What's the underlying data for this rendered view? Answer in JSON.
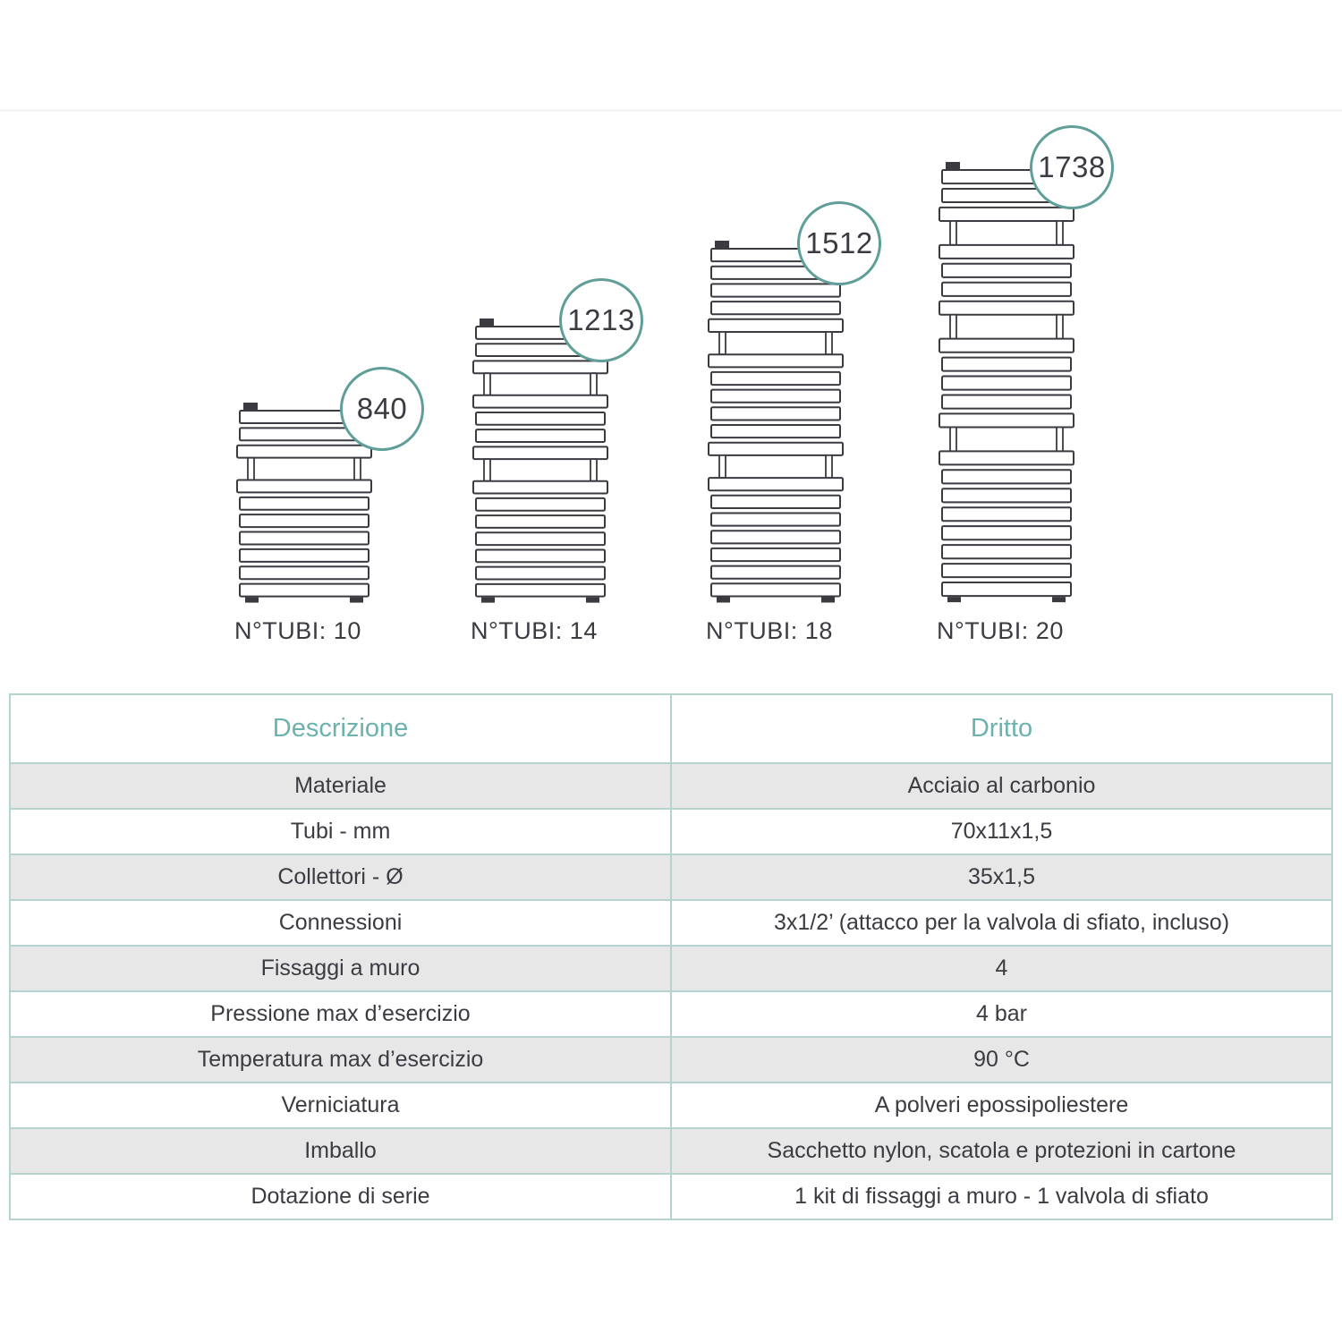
{
  "colors": {
    "teal_accent": "#6cb2ae",
    "circle_border": "#5f9e99",
    "table_border": "#b7d3cf",
    "row_alt_bg": "#e7e7e7",
    "text_dark": "#3b3b42",
    "line_dark": "#3a3a40",
    "divider": "#f6f6f6"
  },
  "diagram": {
    "radiators": [
      {
        "height_label": "840",
        "tubes_label": "N°TUBI: 10",
        "tube_groups": [
          3,
          7
        ]
      },
      {
        "height_label": "1213",
        "tubes_label": "N°TUBI: 14",
        "tube_groups": [
          3,
          4,
          7
        ]
      },
      {
        "height_label": "1512",
        "tubes_label": "N°TUBI: 18",
        "tube_groups": [
          5,
          6,
          7
        ]
      },
      {
        "height_label": "1738",
        "tubes_label": "N°TUBI: 20",
        "tube_groups": [
          3,
          4,
          5,
          8
        ]
      }
    ]
  },
  "table": {
    "headers": [
      "Descrizione",
      "Dritto"
    ],
    "rows": [
      {
        "label": "Materiale",
        "value": "Acciaio al carbonio"
      },
      {
        "label": "Tubi - mm",
        "value": "70x11x1,5"
      },
      {
        "label": "Collettori - Ø",
        "value": "35x1,5"
      },
      {
        "label": "Connessioni",
        "value": "3x1/2’ (attacco per la valvola di sfiato, incluso)"
      },
      {
        "label": "Fissaggi a muro",
        "value": "4"
      },
      {
        "label": "Pressione max d’esercizio",
        "value": "4 bar"
      },
      {
        "label": "Temperatura max d’esercizio",
        "value": "90 °C"
      },
      {
        "label": "Verniciatura",
        "value": "A polveri epossipoliestere"
      },
      {
        "label": "Imballo",
        "value": "Sacchetto nylon, scatola e protezioni in cartone"
      },
      {
        "label": "Dotazione di serie",
        "value": "1 kit di fissaggi a muro - 1 valvola di sfiato"
      }
    ]
  }
}
